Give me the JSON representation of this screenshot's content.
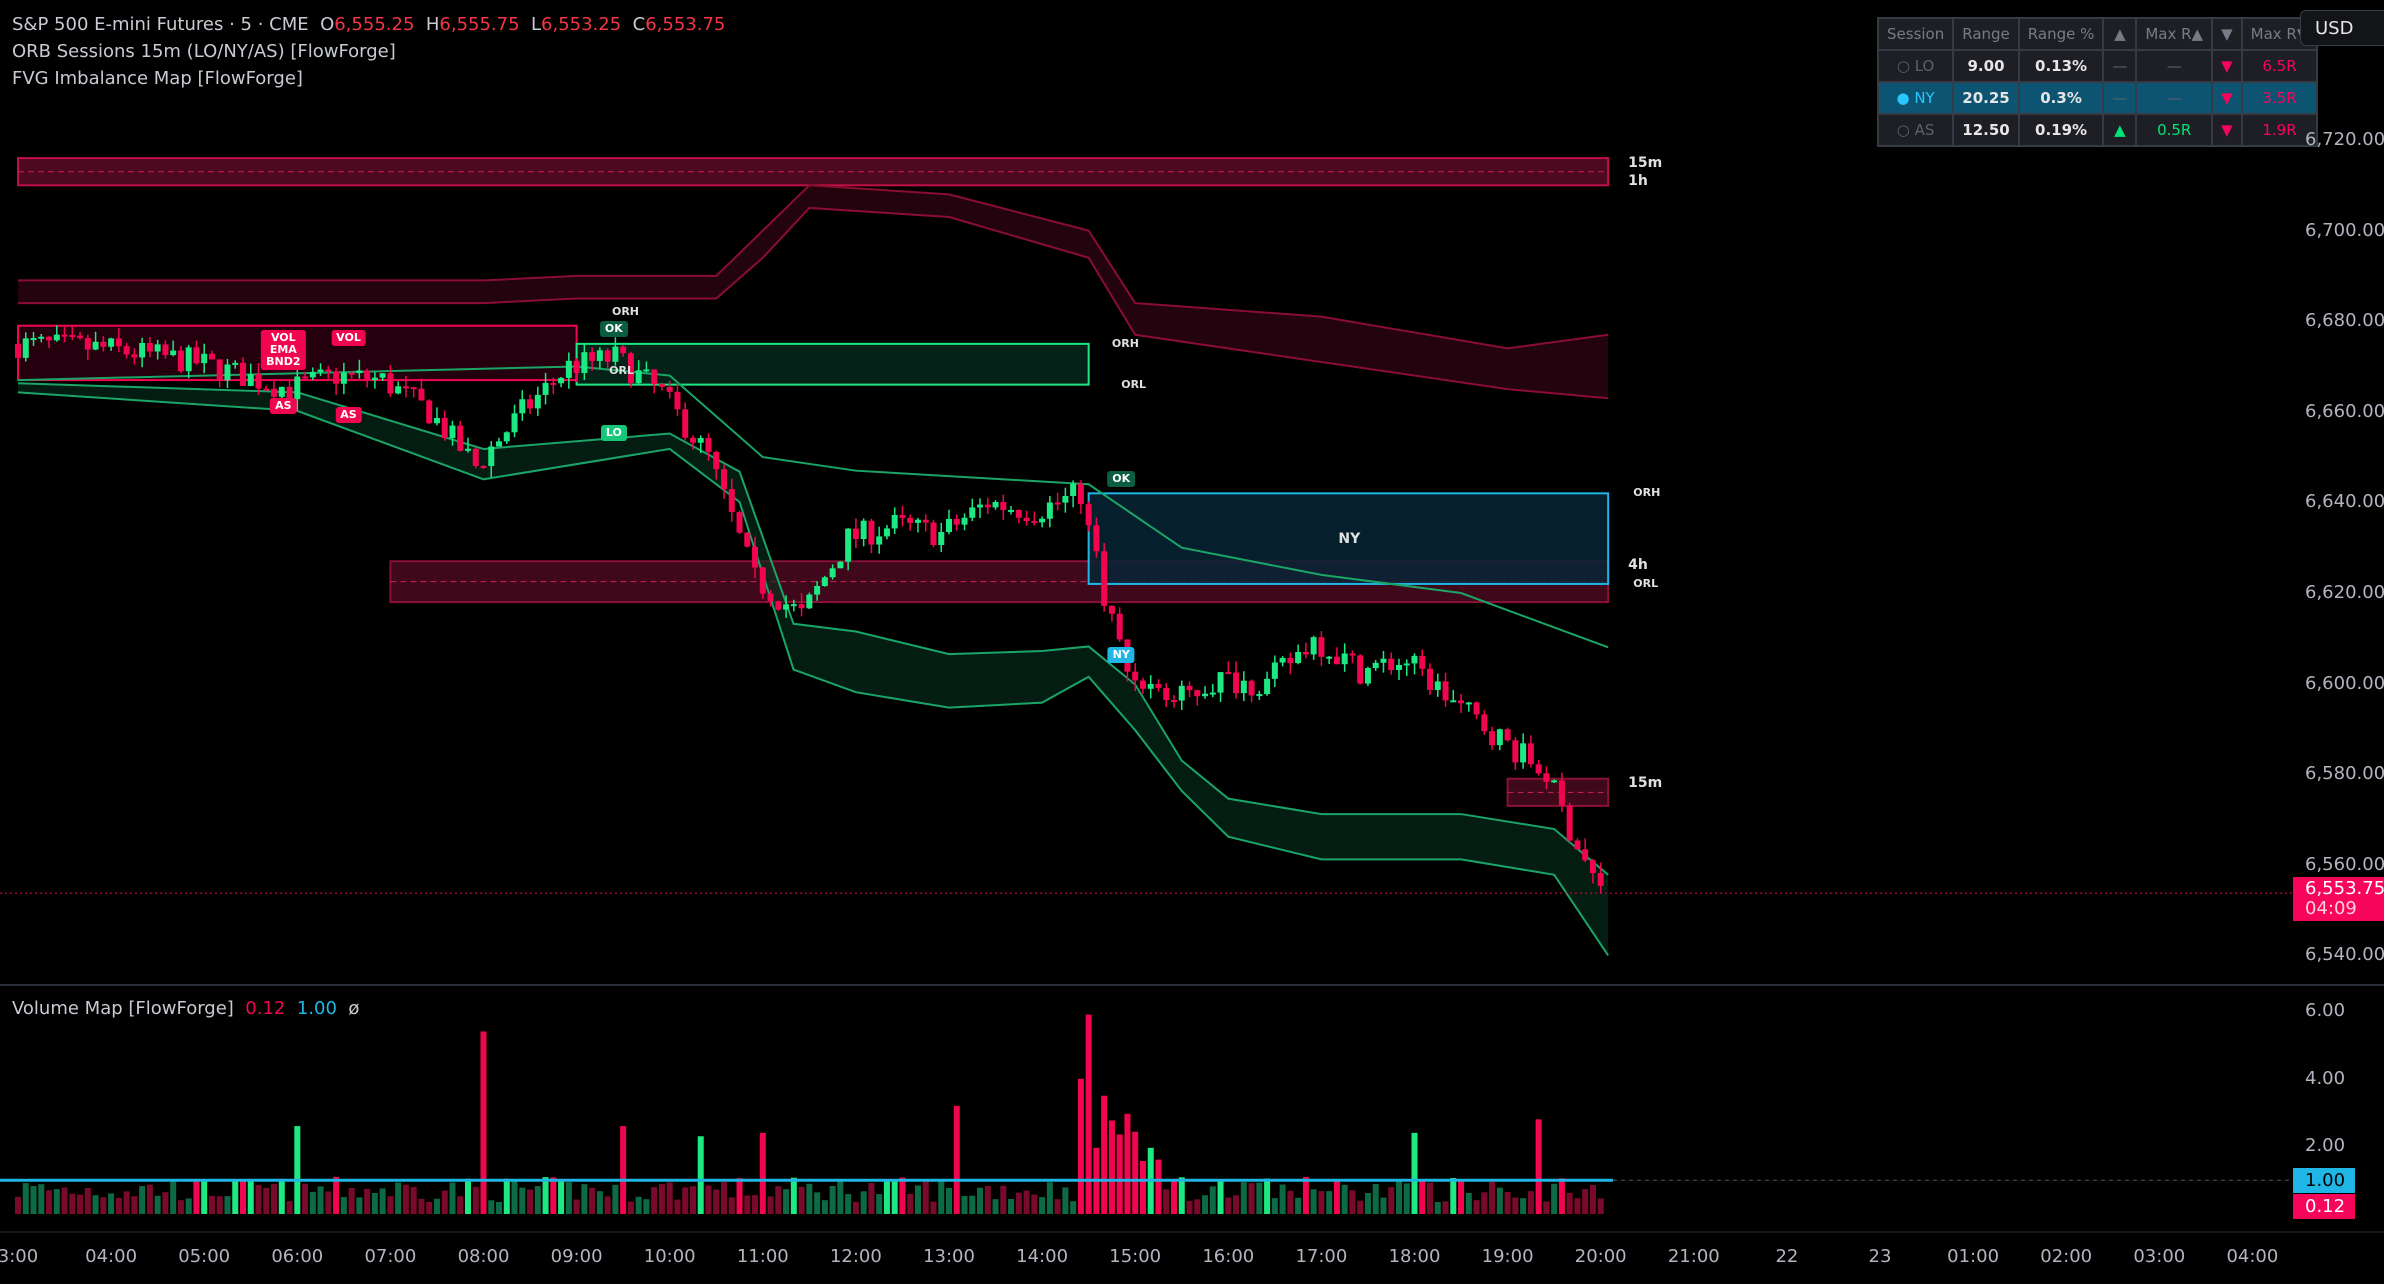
{
  "header": {
    "symbol": "S&P 500 E-mini Futures · 5 · CME",
    "o_label": "O",
    "o": "6,555.25",
    "h_label": "H",
    "h": "6,555.75",
    "l_label": "L",
    "l": "6,553.25",
    "c_label": "C",
    "c": "6,553.75",
    "indicators": [
      "ORB Sessions 15m (LO/NY/AS) [FlowForge]",
      "FVG Imbalance Map [FlowForge]"
    ]
  },
  "currency": "USD",
  "session_table": {
    "headers": [
      "Session",
      "Range",
      "Range %",
      "▲",
      "Max R▲",
      "▼",
      "Max R▼"
    ],
    "rows": [
      {
        "session": "○ LO",
        "range": "9.00",
        "range_pct": "0.13%",
        "up": "—",
        "max_up": "—",
        "down": "▼",
        "max_down": "6.5R",
        "active": false
      },
      {
        "session": "● NY",
        "range": "20.25",
        "range_pct": "0.3%",
        "up": "—",
        "max_up": "—",
        "down": "▼",
        "max_down": "3.5R",
        "active": true
      },
      {
        "session": "○ AS",
        "range": "12.50",
        "range_pct": "0.19%",
        "up": "▲",
        "max_up": "0.5R",
        "down": "▼",
        "max_down": "1.9R",
        "active": false
      }
    ]
  },
  "price_axis": [
    "6,720.00",
    "6,700.00",
    "6,680.00",
    "6,660.00",
    "6,640.00",
    "6,620.00",
    "6,600.00",
    "6,580.00",
    "6,560.00",
    "6,540.00"
  ],
  "last_price": {
    "value": "6,553.75",
    "countdown": "04:09",
    "price": 6553.75
  },
  "volume_pane": {
    "title": "Volume Map [FlowForge]",
    "v1": "0.12",
    "v2": "1.00",
    "v3": "ø",
    "axis": [
      "6.00",
      "4.00",
      "2.00"
    ],
    "tag_blue": "1.00",
    "tag_red": "0.12",
    "threshold": 1.0,
    "spikes": [
      [
        6.0,
        2.6
      ],
      [
        8.0,
        5.4
      ],
      [
        9.5,
        2.6
      ],
      [
        10.3,
        2.3
      ],
      [
        11.0,
        2.4
      ],
      [
        13.1,
        3.2
      ],
      [
        14.4,
        4.0
      ],
      [
        14.5,
        5.9
      ],
      [
        14.65,
        3.5
      ],
      [
        18.0,
        2.4
      ],
      [
        19.3,
        2.8
      ]
    ]
  },
  "time_axis": [
    [
      "3:00",
      3
    ],
    [
      "04:00",
      4
    ],
    [
      "05:00",
      5
    ],
    [
      "06:00",
      6
    ],
    [
      "07:00",
      7
    ],
    [
      "08:00",
      8
    ],
    [
      "09:00",
      9
    ],
    [
      "10:00",
      10
    ],
    [
      "11:00",
      11
    ],
    [
      "12:00",
      12
    ],
    [
      "13:00",
      13
    ],
    [
      "14:00",
      14
    ],
    [
      "15:00",
      15
    ],
    [
      "16:00",
      16
    ],
    [
      "17:00",
      17
    ],
    [
      "18:00",
      18
    ],
    [
      "19:00",
      19
    ],
    [
      "20:00",
      20
    ],
    [
      "21:00",
      21
    ],
    [
      "22",
      22
    ],
    [
      "23",
      23
    ],
    [
      "01:00",
      24
    ],
    [
      "02:00",
      25
    ],
    [
      "03:00",
      26
    ],
    [
      "04:00",
      27
    ]
  ],
  "colors": {
    "up": "#1de982",
    "down": "#f2054f",
    "ny": "#1fb6e6",
    "bg": "#000000"
  },
  "price_path": [
    [
      3,
      6675
    ],
    [
      4,
      6674
    ],
    [
      5,
      6671
    ],
    [
      6,
      6665
    ],
    [
      6.5,
      6668
    ],
    [
      7,
      6667
    ],
    [
      7.5,
      6660
    ],
    [
      8,
      6648
    ],
    [
      8.5,
      6660
    ],
    [
      9,
      6670
    ],
    [
      9.5,
      6672
    ],
    [
      10,
      6664
    ],
    [
      10.5,
      6650
    ],
    [
      11,
      6623
    ],
    [
      11.5,
      6615
    ],
    [
      12,
      6632
    ],
    [
      12.5,
      6635
    ],
    [
      13,
      6633
    ],
    [
      13.5,
      6640
    ],
    [
      14,
      6638
    ],
    [
      14.5,
      6642
    ],
    [
      14.75,
      6620
    ],
    [
      15,
      6603
    ],
    [
      15.5,
      6596
    ],
    [
      16,
      6601
    ],
    [
      16.5,
      6600
    ],
    [
      17,
      6610
    ],
    [
      17.5,
      6603
    ],
    [
      18,
      6605
    ],
    [
      18.5,
      6596
    ],
    [
      19,
      6588
    ],
    [
      19.5,
      6580
    ],
    [
      19.75,
      6568
    ],
    [
      20.08,
      6554
    ]
  ],
  "upper_band": [
    [
      3,
      6689,
      6684
    ],
    [
      8,
      6689,
      6684
    ],
    [
      9,
      6690,
      6685
    ],
    [
      10.5,
      6690,
      6685
    ],
    [
      11,
      6700,
      6694
    ],
    [
      11.5,
      6710,
      6705
    ],
    [
      13,
      6708,
      6703
    ],
    [
      14.5,
      6700,
      6694
    ],
    [
      15,
      6684,
      6677
    ],
    [
      17,
      6681,
      6671
    ],
    [
      19,
      6674,
      6665
    ],
    [
      20.08,
      6677,
      6663
    ]
  ],
  "lower_band": [
    [
      3,
      6666.3,
      6664.3
    ],
    [
      6,
      6664.3,
      6660.2
    ],
    [
      8,
      6651.8,
      6645.1
    ],
    [
      10,
      6655.2,
      6651.8
    ],
    [
      10.75,
      6646.8,
      6640.1
    ],
    [
      11.33,
      6613.2,
      6603.1
    ],
    [
      12,
      6611.5,
      6598.1
    ],
    [
      13,
      6606.5,
      6594.7
    ],
    [
      14,
      6607.2,
      6595.8
    ],
    [
      14.5,
      6608.2,
      6601.5
    ],
    [
      15,
      6599.8,
      6589.7
    ],
    [
      15.5,
      6583,
      6576.3
    ],
    [
      16,
      6574.6,
      6566.2
    ],
    [
      17,
      6571.2,
      6561.2
    ],
    [
      18.5,
      6571.2,
      6561.2
    ],
    [
      19.5,
      6567.9,
      6557.8
    ],
    [
      20.08,
      6557.8,
      6540
    ]
  ],
  "mid_line": [
    [
      3,
      6667
    ],
    [
      9,
      6670
    ],
    [
      10,
      6668
    ],
    [
      11,
      6650
    ],
    [
      12,
      6647
    ],
    [
      14.5,
      6644
    ],
    [
      15.5,
      6630
    ],
    [
      17,
      6624
    ],
    [
      18.5,
      6620
    ],
    [
      20.08,
      6608
    ]
  ],
  "zones": [
    {
      "kind": "htf",
      "t0": 3,
      "t1": 20.08,
      "top": 6716,
      "bottom": 6710,
      "labels": [
        "15m",
        "1h"
      ]
    },
    {
      "kind": "as",
      "t0": 3,
      "t1": 9,
      "top": 6679,
      "bottom": 6667
    },
    {
      "kind": "lo",
      "t0": 9,
      "t1": 14.5,
      "top": 6675,
      "bottom": 6666,
      "labels": [
        "ORH",
        "ORL"
      ]
    },
    {
      "kind": "fvg",
      "t0": 7,
      "t1": 20.08,
      "top": 6627,
      "bottom": 6618,
      "labels": [
        "4h"
      ]
    },
    {
      "kind": "ny",
      "t0": 14.5,
      "t1": 20.08,
      "top": 6642,
      "bottom": 6622,
      "name": "NY",
      "labels": [
        "ORH",
        "ORL"
      ]
    },
    {
      "kind": "fvg",
      "t0": 19,
      "t1": 20.08,
      "top": 6579,
      "bottom": 6573,
      "labels": [
        "15m"
      ]
    }
  ],
  "markers": [
    {
      "text": "VOL\nEMA\nBND2",
      "t": 5.85,
      "p": 6678,
      "color": "#f2054f"
    },
    {
      "text": "VOL",
      "t": 6.55,
      "p": 6678,
      "color": "#f2054f"
    },
    {
      "text": "AS",
      "t": 5.85,
      "p": 6663,
      "color": "#f2054f"
    },
    {
      "text": "AS",
      "t": 6.55,
      "p": 6661,
      "color": "#f2054f"
    },
    {
      "text": "OK",
      "t": 9.4,
      "p": 6680,
      "color": "#0b5e40"
    },
    {
      "text": "LO",
      "t": 9.4,
      "p": 6657,
      "color": "#16c77a"
    },
    {
      "text": "OK",
      "t": 14.85,
      "p": 6647,
      "color": "#0b5e40"
    },
    {
      "text": "NY",
      "t": 14.85,
      "p": 6608,
      "color": "#1fb6e6"
    }
  ],
  "box_labels": [
    {
      "text": "ORH",
      "t": 9.38,
      "p": 6682
    },
    {
      "text": "ORL",
      "t": 9.35,
      "p": 6669
    },
    {
      "text": "ORH",
      "t": 14.75,
      "p": 6675
    },
    {
      "text": "ORL",
      "t": 14.85,
      "p": 6666
    },
    {
      "text": "ORH",
      "t": 20.35,
      "p": 6642
    },
    {
      "text": "ORL",
      "t": 20.35,
      "p": 6622
    }
  ]
}
